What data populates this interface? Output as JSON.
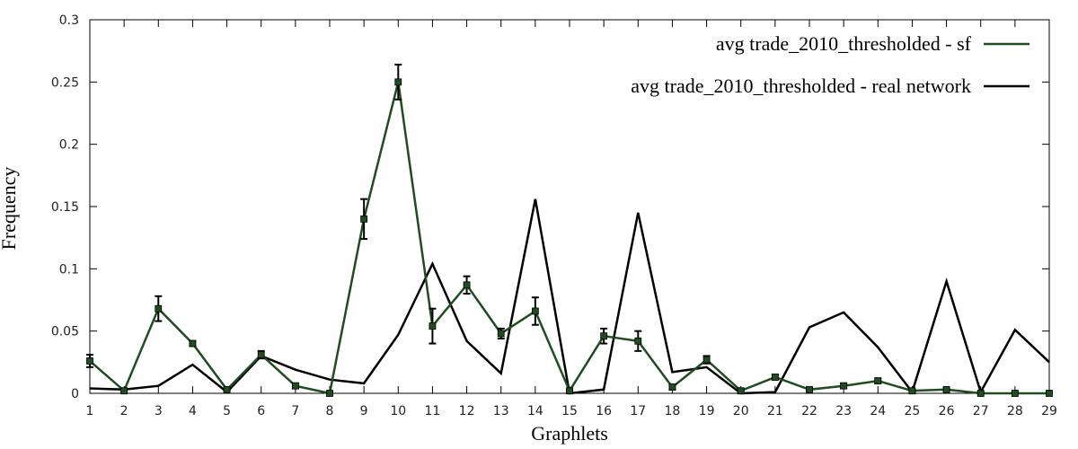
{
  "chart_data": {
    "type": "line",
    "xlabel": "Graphlets",
    "ylabel": "Frequency",
    "categories": [
      1,
      2,
      3,
      4,
      5,
      6,
      7,
      8,
      9,
      10,
      11,
      12,
      13,
      14,
      15,
      16,
      17,
      18,
      19,
      20,
      21,
      22,
      23,
      24,
      25,
      26,
      27,
      28,
      29
    ],
    "ylim": [
      0,
      0.3
    ],
    "yticks": [
      "0",
      "0.05",
      "0.1",
      "0.15",
      "0.2",
      "0.25",
      "0.3"
    ],
    "grid": false,
    "legend_position": "top-right",
    "series": [
      {
        "name": "avg trade_2010_thresholded - sf",
        "color": "#1f4d1f",
        "marker": "square",
        "values": [
          0.026,
          0.002,
          0.068,
          0.04,
          0.003,
          0.031,
          0.006,
          0.0,
          0.14,
          0.25,
          0.054,
          0.087,
          0.048,
          0.066,
          0.002,
          0.046,
          0.042,
          0.005,
          0.027,
          0.002,
          0.013,
          0.003,
          0.006,
          0.01,
          0.002,
          0.003,
          0.0,
          0.0,
          0.0
        ],
        "error": [
          0.005,
          0.001,
          0.01,
          0.002,
          0.001,
          0.003,
          0.002,
          0.001,
          0.016,
          0.014,
          0.014,
          0.007,
          0.004,
          0.011,
          0.001,
          0.006,
          0.008,
          0.002,
          0.003,
          0.001,
          0.002,
          0.001,
          0.002,
          0.002,
          0.001,
          0.001,
          0.001,
          0.001,
          0.001
        ]
      },
      {
        "name": "avg trade_2010_thresholded - real network",
        "color": "#000000",
        "marker": "none",
        "values": [
          0.004,
          0.003,
          0.006,
          0.023,
          0.001,
          0.03,
          0.019,
          0.011,
          0.008,
          0.047,
          0.104,
          0.042,
          0.016,
          0.156,
          0.0,
          0.003,
          0.145,
          0.017,
          0.021,
          0.0,
          0.001,
          0.053,
          0.065,
          0.037,
          0.001,
          0.09,
          0.001,
          0.051,
          0.025
        ]
      }
    ]
  }
}
